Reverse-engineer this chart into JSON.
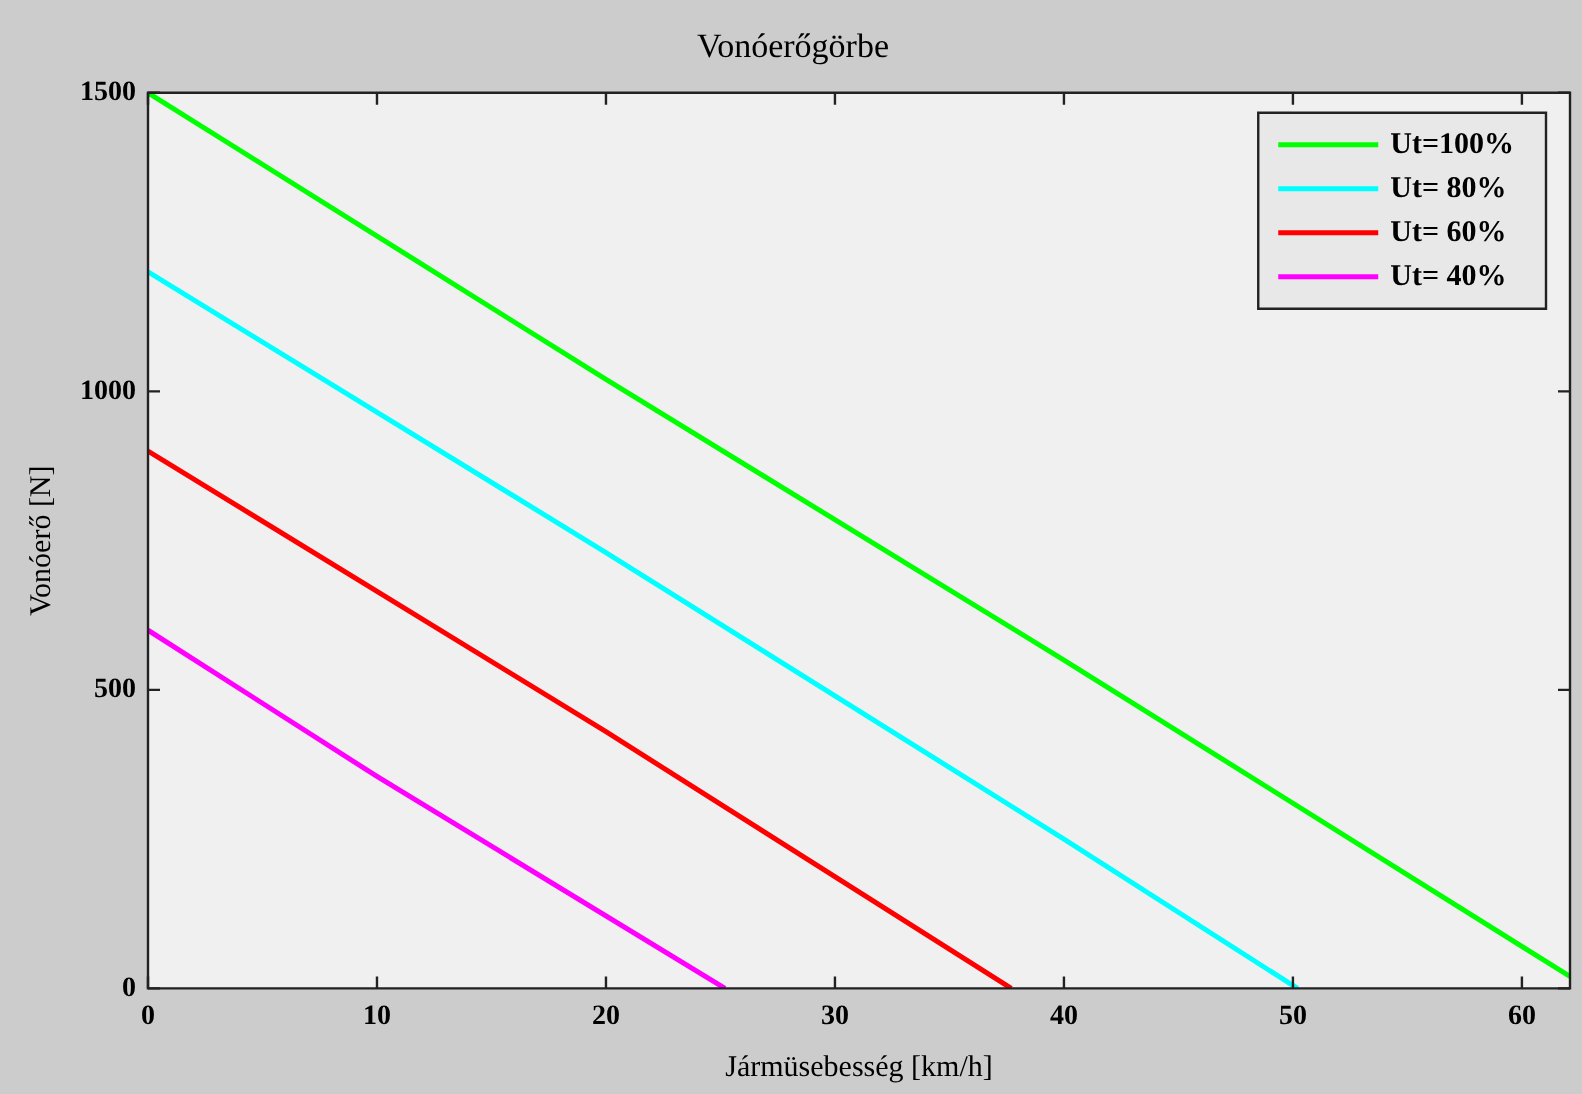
{
  "chart_data": {
    "type": "line",
    "title": "Vonóerőgörbe",
    "xlabel": "Jármüsebesség [km/h]",
    "ylabel": "Vonóerő [N]",
    "xlim": [
      0,
      62.1
    ],
    "xticks": [
      0,
      10,
      20,
      30,
      40,
      50,
      60
    ],
    "ylim": [
      0,
      1500
    ],
    "yticks": [
      0,
      500,
      1000,
      1500
    ],
    "grid": false,
    "legend": "top right",
    "marker": "none",
    "line_style": "solid",
    "series": [
      {
        "name": "Ut=100%",
        "color": "#00ff00",
        "x": [
          0,
          20,
          40,
          62.1
        ],
        "values": [
          1500,
          1020,
          550,
          20
        ]
      },
      {
        "name": "Ut= 80%",
        "color": "#00ffff",
        "x": [
          0,
          20,
          40,
          50.2
        ],
        "values": [
          1200,
          730,
          250,
          0
        ]
      },
      {
        "name": "Ut= 60%",
        "color": "#ff0000",
        "x": [
          0,
          20,
          37.7
        ],
        "values": [
          900,
          430,
          0
        ]
      },
      {
        "name": "Ut= 40%",
        "color": "#ff00ff",
        "x": [
          0,
          10,
          25.2
        ],
        "values": [
          600,
          355,
          0
        ]
      }
    ]
  }
}
